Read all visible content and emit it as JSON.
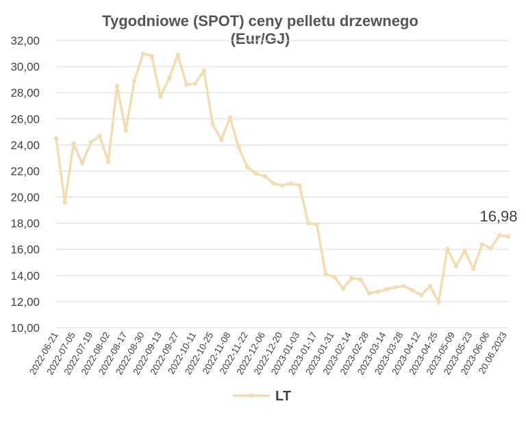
{
  "chart_data": {
    "type": "line",
    "title": "Tygodniowe (SPOT) ceny pelletu drzewnego",
    "subtitle": "(Eur/GJ)",
    "xlabel": "",
    "ylabel": "",
    "ylim": [
      10,
      32
    ],
    "yticks": [
      "10,00",
      "12,00",
      "14,00",
      "16,00",
      "18,00",
      "20,00",
      "22,00",
      "24,00",
      "26,00",
      "28,00",
      "30,00",
      "32,00"
    ],
    "xtick_labels": [
      "2022-06-21",
      "2022-07-05",
      "2022-07-19",
      "2022-08-02",
      "2022-08-17",
      "2022-08-30",
      "2022-09-13",
      "2022-09-27",
      "2022-10-11",
      "2022-10-25",
      "2022-11-08",
      "2022-11-22",
      "2022-12-06",
      "2022-12-20",
      "2023-01-03",
      "2023-01-17",
      "2023-01-31",
      "2023-02-14",
      "2023-02-28",
      "2023-03-14",
      "2023-03-28",
      "2023-04-12",
      "2023-04-25",
      "2023-05-09",
      "2023-05-23",
      "2023-06-06",
      "20.06.2023"
    ],
    "grid": true,
    "legend": "bottom",
    "color": "#F2DCB0",
    "annotation": "16,98",
    "series": [
      {
        "name": "LT",
        "values": [
          24.5,
          19.6,
          24.1,
          22.6,
          24.2,
          24.7,
          22.7,
          28.5,
          25.1,
          28.9,
          31.0,
          30.8,
          27.7,
          29.1,
          30.9,
          28.6,
          28.7,
          29.7,
          25.6,
          24.4,
          26.1,
          23.8,
          22.3,
          21.8,
          21.6,
          21.05,
          20.9,
          21.05,
          20.9,
          18.0,
          17.9,
          14.1,
          13.9,
          13.0,
          13.8,
          13.7,
          12.65,
          12.75,
          12.95,
          13.1,
          13.2,
          12.85,
          12.5,
          13.2,
          11.95,
          16.05,
          14.7,
          15.9,
          14.5,
          16.4,
          16.1,
          17.1,
          16.98
        ]
      }
    ]
  }
}
